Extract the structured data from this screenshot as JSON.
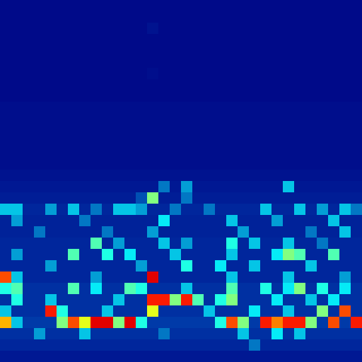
{
  "chart_data": {
    "type": "heatmap",
    "color": "Jet",
    "tick_labels": false,
    "zlim": [
      0,
      1
    ],
    "cells": [
      [
        0.02,
        0.02,
        0.02,
        0.02,
        0.02,
        0.02,
        0.02,
        0.02,
        0.02,
        0.02,
        0.02,
        0.02,
        0.02,
        0.02,
        0.02,
        0.02,
        0.02,
        0.02,
        0.02,
        0.02,
        0.02,
        0.02,
        0.02,
        0.02,
        0.02,
        0.02,
        0.02,
        0.02,
        0.02,
        0.02,
        0.02,
        0.02
      ],
      [
        0.02,
        0.02,
        0.02,
        0.02,
        0.02,
        0.02,
        0.02,
        0.02,
        0.02,
        0.02,
        0.02,
        0.02,
        0.02,
        0.02,
        0.02,
        0.02,
        0.02,
        0.02,
        0.02,
        0.02,
        0.02,
        0.02,
        0.02,
        0.02,
        0.02,
        0.02,
        0.02,
        0.02,
        0.02,
        0.02,
        0.02,
        0.02
      ],
      [
        0.02,
        0.02,
        0.02,
        0.02,
        0.02,
        0.02,
        0.02,
        0.02,
        0.02,
        0.02,
        0.02,
        0.02,
        0.02,
        0.04,
        0.02,
        0.02,
        0.02,
        0.02,
        0.02,
        0.02,
        0.02,
        0.02,
        0.02,
        0.02,
        0.02,
        0.02,
        0.02,
        0.02,
        0.02,
        0.02,
        0.02,
        0.02
      ],
      [
        0.02,
        0.02,
        0.02,
        0.02,
        0.02,
        0.02,
        0.02,
        0.02,
        0.02,
        0.02,
        0.02,
        0.02,
        0.02,
        0.02,
        0.02,
        0.02,
        0.02,
        0.02,
        0.02,
        0.02,
        0.02,
        0.02,
        0.02,
        0.02,
        0.02,
        0.02,
        0.02,
        0.02,
        0.02,
        0.02,
        0.02,
        0.02
      ],
      [
        0.02,
        0.02,
        0.02,
        0.02,
        0.02,
        0.02,
        0.02,
        0.02,
        0.02,
        0.02,
        0.02,
        0.02,
        0.02,
        0.02,
        0.02,
        0.02,
        0.02,
        0.02,
        0.02,
        0.02,
        0.02,
        0.02,
        0.02,
        0.02,
        0.02,
        0.02,
        0.02,
        0.02,
        0.02,
        0.02,
        0.02,
        0.02
      ],
      [
        0.02,
        0.02,
        0.02,
        0.02,
        0.02,
        0.02,
        0.02,
        0.02,
        0.02,
        0.02,
        0.02,
        0.02,
        0.02,
        0.02,
        0.02,
        0.02,
        0.02,
        0.02,
        0.02,
        0.02,
        0.02,
        0.02,
        0.02,
        0.02,
        0.02,
        0.02,
        0.02,
        0.02,
        0.02,
        0.02,
        0.02,
        0.02
      ],
      [
        0.02,
        0.02,
        0.02,
        0.02,
        0.02,
        0.02,
        0.02,
        0.02,
        0.02,
        0.02,
        0.02,
        0.02,
        0.02,
        0.03,
        0.02,
        0.02,
        0.02,
        0.02,
        0.02,
        0.02,
        0.02,
        0.02,
        0.02,
        0.02,
        0.02,
        0.02,
        0.02,
        0.02,
        0.02,
        0.02,
        0.02,
        0.02
      ],
      [
        0.02,
        0.02,
        0.02,
        0.02,
        0.02,
        0.02,
        0.02,
        0.02,
        0.02,
        0.02,
        0.02,
        0.02,
        0.02,
        0.02,
        0.02,
        0.02,
        0.02,
        0.02,
        0.02,
        0.02,
        0.02,
        0.02,
        0.02,
        0.02,
        0.02,
        0.02,
        0.02,
        0.02,
        0.02,
        0.02,
        0.02,
        0.02
      ],
      [
        0.02,
        0.02,
        0.02,
        0.02,
        0.02,
        0.02,
        0.02,
        0.02,
        0.02,
        0.02,
        0.02,
        0.02,
        0.02,
        0.02,
        0.02,
        0.02,
        0.02,
        0.02,
        0.02,
        0.02,
        0.02,
        0.02,
        0.02,
        0.02,
        0.02,
        0.02,
        0.02,
        0.02,
        0.02,
        0.02,
        0.02,
        0.02
      ],
      [
        0.03,
        0.03,
        0.03,
        0.03,
        0.03,
        0.03,
        0.03,
        0.03,
        0.03,
        0.03,
        0.03,
        0.03,
        0.03,
        0.03,
        0.03,
        0.03,
        0.03,
        0.03,
        0.03,
        0.03,
        0.03,
        0.03,
        0.03,
        0.03,
        0.03,
        0.03,
        0.03,
        0.03,
        0.03,
        0.03,
        0.03,
        0.03
      ],
      [
        0.03,
        0.03,
        0.03,
        0.03,
        0.03,
        0.03,
        0.03,
        0.03,
        0.03,
        0.03,
        0.03,
        0.03,
        0.03,
        0.03,
        0.03,
        0.03,
        0.03,
        0.03,
        0.03,
        0.03,
        0.03,
        0.03,
        0.03,
        0.03,
        0.03,
        0.03,
        0.03,
        0.03,
        0.03,
        0.03,
        0.03,
        0.03
      ],
      [
        0.03,
        0.03,
        0.03,
        0.03,
        0.03,
        0.03,
        0.03,
        0.03,
        0.03,
        0.03,
        0.03,
        0.03,
        0.03,
        0.03,
        0.03,
        0.03,
        0.03,
        0.03,
        0.03,
        0.03,
        0.03,
        0.03,
        0.03,
        0.03,
        0.03,
        0.03,
        0.03,
        0.03,
        0.03,
        0.03,
        0.03,
        0.03
      ],
      [
        0.03,
        0.03,
        0.03,
        0.03,
        0.03,
        0.03,
        0.03,
        0.03,
        0.03,
        0.03,
        0.03,
        0.03,
        0.03,
        0.03,
        0.03,
        0.03,
        0.03,
        0.03,
        0.03,
        0.03,
        0.03,
        0.03,
        0.03,
        0.03,
        0.03,
        0.03,
        0.03,
        0.03,
        0.03,
        0.03,
        0.03,
        0.03
      ],
      [
        0.03,
        0.03,
        0.03,
        0.03,
        0.03,
        0.03,
        0.03,
        0.03,
        0.03,
        0.03,
        0.03,
        0.03,
        0.03,
        0.03,
        0.03,
        0.03,
        0.03,
        0.03,
        0.03,
        0.03,
        0.03,
        0.03,
        0.03,
        0.03,
        0.03,
        0.03,
        0.03,
        0.03,
        0.03,
        0.03,
        0.03,
        0.03
      ],
      [
        0.03,
        0.03,
        0.03,
        0.03,
        0.03,
        0.03,
        0.03,
        0.03,
        0.03,
        0.03,
        0.03,
        0.03,
        0.03,
        0.03,
        0.03,
        0.03,
        0.03,
        0.03,
        0.03,
        0.03,
        0.03,
        0.03,
        0.03,
        0.03,
        0.03,
        0.03,
        0.03,
        0.03,
        0.03,
        0.03,
        0.03,
        0.03
      ],
      [
        0.04,
        0.04,
        0.04,
        0.04,
        0.04,
        0.04,
        0.04,
        0.04,
        0.04,
        0.04,
        0.04,
        0.04,
        0.04,
        0.04,
        0.04,
        0.04,
        0.04,
        0.04,
        0.04,
        0.04,
        0.04,
        0.04,
        0.04,
        0.04,
        0.04,
        0.04,
        0.04,
        0.04,
        0.04,
        0.04,
        0.04,
        0.04
      ],
      [
        0.05,
        0.05,
        0.05,
        0.05,
        0.05,
        0.05,
        0.05,
        0.05,
        0.05,
        0.05,
        0.05,
        0.05,
        0.05,
        0.05,
        0.2,
        0.05,
        0.25,
        0.05,
        0.05,
        0.05,
        0.05,
        0.05,
        0.05,
        0.05,
        0.05,
        0.3,
        0.05,
        0.05,
        0.05,
        0.05,
        0.05,
        0.05
      ],
      [
        0.06,
        0.06,
        0.06,
        0.06,
        0.06,
        0.06,
        0.06,
        0.06,
        0.06,
        0.06,
        0.06,
        0.06,
        0.15,
        0.5,
        0.06,
        0.06,
        0.2,
        0.06,
        0.06,
        0.06,
        0.06,
        0.06,
        0.06,
        0.06,
        0.06,
        0.06,
        0.06,
        0.06,
        0.06,
        0.06,
        0.06,
        0.06
      ],
      [
        0.3,
        0.3,
        0.08,
        0.08,
        0.25,
        0.08,
        0.3,
        0.08,
        0.2,
        0.08,
        0.3,
        0.3,
        0.25,
        0.08,
        0.08,
        0.2,
        0.08,
        0.08,
        0.2,
        0.08,
        0.08,
        0.08,
        0.08,
        0.3,
        0.08,
        0.08,
        0.3,
        0.08,
        0.25,
        0.08,
        0.3,
        0.2
      ],
      [
        0.07,
        0.25,
        0.07,
        0.07,
        0.07,
        0.07,
        0.07,
        0.2,
        0.07,
        0.07,
        0.07,
        0.07,
        0.07,
        0.07,
        0.35,
        0.07,
        0.07,
        0.07,
        0.07,
        0.07,
        0.3,
        0.07,
        0.07,
        0.07,
        0.25,
        0.07,
        0.07,
        0.07,
        0.07,
        0.3,
        0.07,
        0.07
      ],
      [
        0.07,
        0.07,
        0.07,
        0.2,
        0.07,
        0.07,
        0.07,
        0.07,
        0.07,
        0.2,
        0.07,
        0.07,
        0.07,
        0.25,
        0.07,
        0.07,
        0.07,
        0.07,
        0.07,
        0.07,
        0.07,
        0.25,
        0.07,
        0.07,
        0.07,
        0.07,
        0.07,
        0.2,
        0.07,
        0.07,
        0.3,
        0.07
      ],
      [
        0.08,
        0.08,
        0.08,
        0.08,
        0.08,
        0.08,
        0.08,
        0.08,
        0.45,
        0.08,
        0.25,
        0.08,
        0.08,
        0.08,
        0.3,
        0.08,
        0.25,
        0.08,
        0.08,
        0.08,
        0.4,
        0.08,
        0.3,
        0.08,
        0.08,
        0.3,
        0.08,
        0.08,
        0.2,
        0.08,
        0.08,
        0.08
      ],
      [
        0.08,
        0.25,
        0.08,
        0.08,
        0.08,
        0.08,
        0.45,
        0.08,
        0.08,
        0.4,
        0.08,
        0.35,
        0.08,
        0.08,
        0.08,
        0.3,
        0.08,
        0.08,
        0.08,
        0.08,
        0.3,
        0.08,
        0.08,
        0.08,
        0.35,
        0.5,
        0.45,
        0.08,
        0.08,
        0.45,
        0.08,
        0.08
      ],
      [
        0.08,
        0.08,
        0.08,
        0.08,
        0.25,
        0.08,
        0.08,
        0.08,
        0.08,
        0.08,
        0.08,
        0.08,
        0.25,
        0.08,
        0.08,
        0.08,
        0.4,
        0.08,
        0.08,
        0.35,
        0.08,
        0.08,
        0.3,
        0.08,
        0.08,
        0.08,
        0.08,
        0.3,
        0.08,
        0.08,
        0.08,
        0.08
      ],
      [
        0.8,
        0.3,
        0.08,
        0.08,
        0.08,
        0.08,
        0.08,
        0.08,
        0.25,
        0.08,
        0.08,
        0.08,
        0.08,
        0.9,
        0.08,
        0.08,
        0.08,
        0.08,
        0.08,
        0.08,
        0.3,
        0.08,
        0.08,
        0.08,
        0.08,
        0.3,
        0.08,
        0.08,
        0.08,
        0.08,
        0.25,
        0.08
      ],
      [
        0.4,
        0.45,
        0.1,
        0.1,
        0.1,
        0.1,
        0.45,
        0.1,
        0.35,
        0.1,
        0.1,
        0.45,
        0.4,
        0.1,
        0.1,
        0.1,
        0.3,
        0.1,
        0.1,
        0.1,
        0.45,
        0.1,
        0.1,
        0.4,
        0.1,
        0.35,
        0.5,
        0.1,
        0.4,
        0.1,
        0.35,
        0.1
      ],
      [
        0.1,
        0.4,
        0.1,
        0.1,
        0.3,
        0.1,
        0.1,
        0.1,
        0.1,
        0.1,
        0.3,
        0.1,
        0.1,
        0.85,
        0.85,
        0.5,
        0.85,
        0.45,
        0.1,
        0.4,
        0.5,
        0.1,
        0.1,
        0.1,
        0.35,
        0.1,
        0.1,
        0.3,
        0.1,
        0.35,
        0.1,
        0.1
      ],
      [
        0.3,
        0.1,
        0.1,
        0.1,
        0.85,
        0.4,
        0.1,
        0.1,
        0.1,
        0.3,
        0.1,
        0.1,
        0.1,
        0.6,
        0.1,
        0.1,
        0.1,
        0.1,
        0.3,
        0.1,
        0.1,
        0.1,
        0.35,
        0.1,
        0.1,
        0.3,
        0.1,
        0.1,
        0.5,
        0.1,
        0.8,
        0.1
      ],
      [
        0.7,
        0.3,
        0.12,
        0.12,
        0.12,
        0.5,
        0.8,
        0.6,
        0.9,
        0.9,
        0.5,
        0.9,
        0.4,
        0.12,
        0.12,
        0.12,
        0.12,
        0.12,
        0.12,
        0.4,
        0.8,
        0.5,
        0.12,
        0.85,
        0.75,
        0.85,
        0.85,
        0.5,
        0.12,
        0.8,
        0.12,
        0.85
      ],
      [
        0.1,
        0.1,
        0.1,
        0.25,
        0.1,
        0.1,
        0.1,
        0.3,
        0.1,
        0.1,
        0.1,
        0.1,
        0.1,
        0.1,
        0.2,
        0.1,
        0.1,
        0.1,
        0.1,
        0.1,
        0.1,
        0.3,
        0.1,
        0.1,
        0.35,
        0.1,
        0.3,
        0.1,
        0.1,
        0.1,
        0.1,
        0.1
      ],
      [
        0.08,
        0.08,
        0.08,
        0.08,
        0.08,
        0.08,
        0.08,
        0.08,
        0.08,
        0.08,
        0.08,
        0.08,
        0.08,
        0.08,
        0.08,
        0.08,
        0.08,
        0.08,
        0.08,
        0.08,
        0.08,
        0.08,
        0.2,
        0.08,
        0.08,
        0.08,
        0.08,
        0.08,
        0.08,
        0.08,
        0.08,
        0.08
      ],
      [
        0.05,
        0.05,
        0.05,
        0.05,
        0.05,
        0.05,
        0.05,
        0.05,
        0.05,
        0.05,
        0.05,
        0.05,
        0.05,
        0.05,
        0.05,
        0.05,
        0.05,
        0.05,
        0.05,
        0.05,
        0.05,
        0.05,
        0.05,
        0.05,
        0.05,
        0.05,
        0.05,
        0.05,
        0.05,
        0.05,
        0.05,
        0.05
      ]
    ]
  }
}
